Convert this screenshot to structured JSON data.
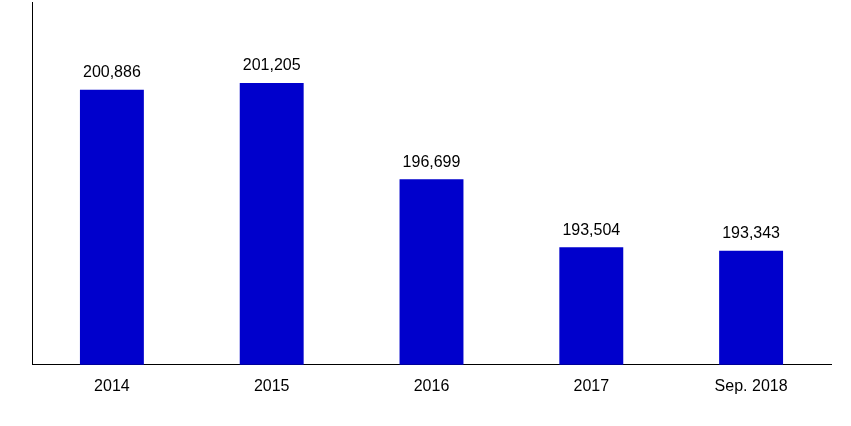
{
  "chart_data": {
    "type": "bar",
    "categories": [
      "2014",
      "2015",
      "2016",
      "2017",
      "Sep. 2018"
    ],
    "values": [
      200886,
      201205,
      196699,
      193504,
      193343
    ],
    "value_labels": [
      "200,886",
      "201,205",
      "196,699",
      "193,504",
      "193,343"
    ],
    "color": "#0000cc",
    "ylim": [
      188000,
      205000
    ],
    "grid": false,
    "data_labels": true,
    "tick_labels": "x"
  }
}
